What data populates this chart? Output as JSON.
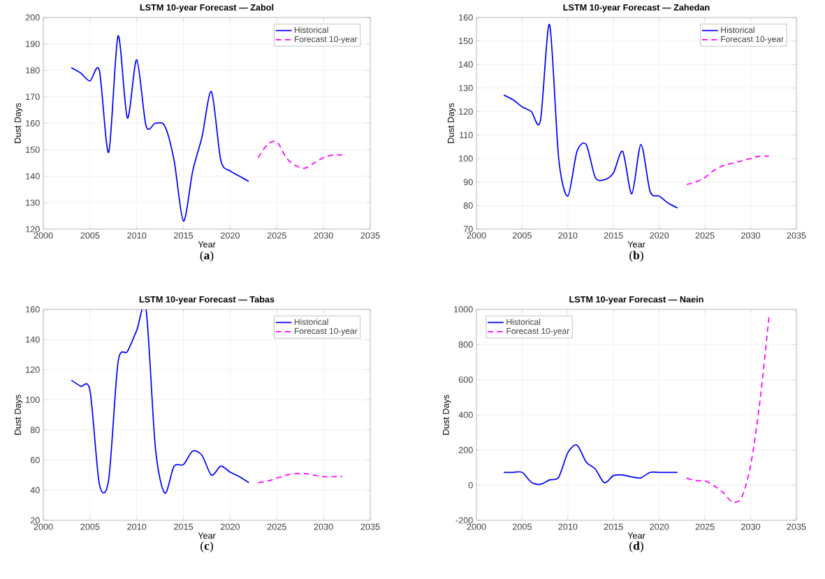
{
  "chart_data": [
    {
      "type": "line",
      "title": "LSTM 10-year Forecast — Zabol",
      "xlabel": "Year",
      "ylabel": "Dust Days",
      "xlim": [
        2000,
        2035
      ],
      "xticks": [
        2000,
        2005,
        2010,
        2015,
        2020,
        2025,
        2030,
        2035
      ],
      "ylim": [
        120,
        200
      ],
      "yticks": [
        120,
        130,
        140,
        150,
        160,
        170,
        180,
        190,
        200
      ],
      "grid": true,
      "legend": "top right",
      "annotations": [
        "(**a**)"
      ],
      "series": [
        {
          "name": "Historical",
          "color": "#0000ff",
          "line_style": "solid",
          "x": [
            2003,
            2004,
            2005,
            2006,
            2007,
            2008,
            2009,
            2010,
            2011,
            2012,
            2013,
            2014,
            2015,
            2016,
            2017,
            2018,
            2019,
            2020,
            2021,
            2022
          ],
          "values": [
            181,
            179,
            176,
            180,
            149,
            193,
            162,
            184,
            159,
            160,
            159,
            146,
            123,
            142,
            155,
            172,
            146,
            142,
            140,
            138
          ]
        },
        {
          "name": "Forecast 10-year",
          "color": "#ff00ff",
          "line_style": "dashed",
          "x": [
            2023,
            2024,
            2025,
            2026,
            2027,
            2028,
            2029,
            2030,
            2031,
            2032
          ],
          "values": [
            147,
            152,
            153,
            147,
            144,
            143,
            145,
            147,
            148,
            148
          ]
        }
      ]
    },
    {
      "type": "line",
      "title": "LSTM 10-year Forecast — Zahedan",
      "xlabel": "Year",
      "ylabel": "Dust Days",
      "xlim": [
        2000,
        2035
      ],
      "xticks": [
        2000,
        2005,
        2010,
        2015,
        2020,
        2025,
        2030,
        2035
      ],
      "ylim": [
        70,
        160
      ],
      "yticks": [
        70,
        80,
        90,
        100,
        110,
        120,
        130,
        140,
        150,
        160
      ],
      "grid": true,
      "legend": "top right",
      "annotations": [
        "(**b**)"
      ],
      "series": [
        {
          "name": "Historical",
          "color": "#0000ff",
          "line_style": "solid",
          "x": [
            2003,
            2004,
            2005,
            2006,
            2007,
            2008,
            2009,
            2010,
            2011,
            2012,
            2013,
            2014,
            2015,
            2016,
            2017,
            2018,
            2019,
            2020,
            2021,
            2022
          ],
          "values": [
            127,
            125,
            122,
            120,
            116,
            157,
            100,
            84,
            103,
            106,
            92,
            91,
            94,
            103,
            85,
            106,
            86,
            84,
            81,
            79
          ]
        },
        {
          "name": "Forecast 10-year",
          "color": "#ff00ff",
          "line_style": "dashed",
          "x": [
            2023,
            2024,
            2025,
            2026,
            2027,
            2028,
            2029,
            2030,
            2031,
            2032
          ],
          "values": [
            89,
            90,
            92,
            95,
            97,
            98,
            99,
            100,
            101,
            101
          ]
        }
      ]
    },
    {
      "type": "line",
      "title": "LSTM 10-year Forecast — Tabas",
      "xlabel": "Year",
      "ylabel": "Dust Days",
      "xlim": [
        2000,
        2035
      ],
      "xticks": [
        2000,
        2005,
        2010,
        2015,
        2020,
        2025,
        2030,
        2035
      ],
      "ylim": [
        20,
        160
      ],
      "yticks": [
        20,
        40,
        60,
        80,
        100,
        120,
        140,
        160
      ],
      "grid": true,
      "legend": "top right",
      "annotations": [
        "(**c**)"
      ],
      "series": [
        {
          "name": "Historical",
          "color": "#0000ff",
          "line_style": "solid",
          "x": [
            2003,
            2004,
            2005,
            2006,
            2007,
            2008,
            2009,
            2010,
            2011,
            2012,
            2013,
            2014,
            2015,
            2016,
            2017,
            2018,
            2019,
            2020,
            2021,
            2022
          ],
          "values": [
            113,
            109,
            106,
            44,
            47,
            125,
            132,
            146,
            160,
            68,
            38,
            56,
            57,
            66,
            63,
            50,
            56,
            52,
            49,
            45
          ]
        },
        {
          "name": "Forecast 10-year",
          "color": "#ff00ff",
          "line_style": "dashed",
          "x": [
            2023,
            2024,
            2025,
            2026,
            2027,
            2028,
            2029,
            2030,
            2031,
            2032
          ],
          "values": [
            45,
            46,
            48,
            50,
            51,
            51,
            50,
            49,
            49,
            49
          ]
        }
      ]
    },
    {
      "type": "line",
      "title": "LSTM 10-year Forecast — Naein",
      "xlabel": "Year",
      "ylabel": "Dust Days",
      "xlim": [
        2000,
        2035
      ],
      "xticks": [
        2000,
        2005,
        2010,
        2015,
        2020,
        2025,
        2030,
        2035
      ],
      "ylim": [
        -200,
        1000
      ],
      "yticks": [
        -200,
        0,
        200,
        400,
        600,
        800,
        1000
      ],
      "grid": true,
      "legend": "top left",
      "annotations": [
        "(**d**)"
      ],
      "series": [
        {
          "name": "Historical",
          "color": "#0000ff",
          "line_style": "solid",
          "x": [
            2003,
            2004,
            2005,
            2006,
            2007,
            2008,
            2009,
            2010,
            2011,
            2012,
            2013,
            2014,
            2015,
            2016,
            2017,
            2018,
            2019,
            2020,
            2021,
            2022
          ],
          "values": [
            73,
            73,
            73,
            17,
            5,
            30,
            45,
            185,
            228,
            132,
            92,
            14,
            55,
            58,
            47,
            42,
            73,
            73,
            73,
            73
          ]
        },
        {
          "name": "Forecast 10-year",
          "color": "#ff00ff",
          "line_style": "dashed",
          "x": [
            2023,
            2024,
            2025,
            2026,
            2027,
            2028,
            2029,
            2030,
            2031,
            2032
          ],
          "values": [
            40,
            25,
            25,
            -3,
            -42,
            -95,
            -72,
            114,
            471,
            955
          ]
        }
      ]
    }
  ]
}
